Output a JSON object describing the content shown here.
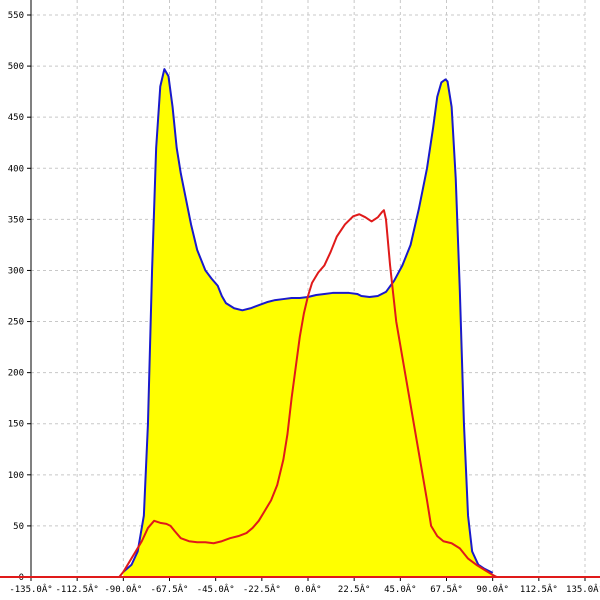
{
  "chart_data": {
    "type": "area",
    "title": "",
    "xlabel": "",
    "ylabel": "",
    "xlim": [
      -135,
      135
    ],
    "ylim": [
      0,
      550
    ],
    "grid": true,
    "x_ticks": [
      -135,
      -112.5,
      -90,
      -67.5,
      -45,
      -22.5,
      0,
      22.5,
      45,
      67.5,
      90,
      112.5,
      135
    ],
    "x_tick_labels": [
      "-135.0Â°",
      "-112.5Â°",
      "-90.0Â°",
      "-67.5Â°",
      "-45.0Â°",
      "-22.5Â°",
      "0.0Â°",
      "22.5Â°",
      "45.0Â°",
      "67.5Â°",
      "90.0Â°",
      "112.5Â°",
      "135.0Â°"
    ],
    "y_ticks": [
      0,
      50,
      100,
      150,
      200,
      250,
      300,
      350,
      400,
      450,
      500,
      550
    ],
    "y_tick_labels": [
      "0",
      "50",
      "100",
      "150",
      "200",
      "250",
      "300",
      "350",
      "400",
      "450",
      "500",
      "550"
    ],
    "series": [
      {
        "color": "#1a1acc",
        "fill": "#ffff00",
        "points": [
          [
            -90,
            5
          ],
          [
            -86,
            12
          ],
          [
            -83,
            25
          ],
          [
            -80,
            60
          ],
          [
            -78,
            150
          ],
          [
            -76,
            300
          ],
          [
            -74,
            420
          ],
          [
            -72,
            480
          ],
          [
            -70,
            497
          ],
          [
            -68,
            490
          ],
          [
            -66,
            460
          ],
          [
            -64,
            420
          ],
          [
            -62,
            395
          ],
          [
            -60,
            375
          ],
          [
            -57,
            345
          ],
          [
            -54,
            320
          ],
          [
            -50,
            300
          ],
          [
            -47,
            292
          ],
          [
            -44,
            285
          ],
          [
            -42,
            275
          ],
          [
            -40,
            268
          ],
          [
            -36,
            263
          ],
          [
            -32,
            261
          ],
          [
            -28,
            263
          ],
          [
            -24,
            266
          ],
          [
            -20,
            269
          ],
          [
            -16,
            271
          ],
          [
            -12,
            272
          ],
          [
            -8,
            273
          ],
          [
            -4,
            273
          ],
          [
            0,
            274
          ],
          [
            4,
            276
          ],
          [
            8,
            277
          ],
          [
            12,
            278
          ],
          [
            16,
            278
          ],
          [
            20,
            278
          ],
          [
            24,
            277
          ],
          [
            26,
            275
          ],
          [
            30,
            274
          ],
          [
            34,
            275
          ],
          [
            38,
            279
          ],
          [
            42,
            290
          ],
          [
            46,
            305
          ],
          [
            50,
            325
          ],
          [
            54,
            360
          ],
          [
            58,
            400
          ],
          [
            61,
            440
          ],
          [
            63,
            470
          ],
          [
            65,
            484
          ],
          [
            67,
            487
          ],
          [
            68,
            485
          ],
          [
            70,
            460
          ],
          [
            72,
            390
          ],
          [
            74,
            280
          ],
          [
            76,
            150
          ],
          [
            78,
            60
          ],
          [
            80,
            25
          ],
          [
            83,
            12
          ],
          [
            86,
            8
          ],
          [
            90,
            4
          ]
        ]
      },
      {
        "color": "#e01a1a",
        "fill": "none",
        "points": [
          [
            -135,
            0
          ],
          [
            -92,
            0
          ],
          [
            -90,
            5
          ],
          [
            -87,
            15
          ],
          [
            -84,
            25
          ],
          [
            -81,
            35
          ],
          [
            -78,
            48
          ],
          [
            -75,
            55
          ],
          [
            -72,
            53
          ],
          [
            -69,
            52
          ],
          [
            -67,
            50
          ],
          [
            -65,
            45
          ],
          [
            -62,
            38
          ],
          [
            -58,
            35
          ],
          [
            -54,
            34
          ],
          [
            -50,
            34
          ],
          [
            -46,
            33
          ],
          [
            -42,
            35
          ],
          [
            -38,
            38
          ],
          [
            -34,
            40
          ],
          [
            -30,
            43
          ],
          [
            -27,
            48
          ],
          [
            -24,
            55
          ],
          [
            -21,
            65
          ],
          [
            -18,
            75
          ],
          [
            -15,
            90
          ],
          [
            -12,
            115
          ],
          [
            -10,
            140
          ],
          [
            -8,
            175
          ],
          [
            -6,
            205
          ],
          [
            -4,
            235
          ],
          [
            -2,
            258
          ],
          [
            0,
            275
          ],
          [
            2,
            288
          ],
          [
            5,
            298
          ],
          [
            8,
            305
          ],
          [
            11,
            318
          ],
          [
            14,
            333
          ],
          [
            18,
            345
          ],
          [
            22,
            353
          ],
          [
            25,
            355
          ],
          [
            28,
            352
          ],
          [
            31,
            348
          ],
          [
            34,
            352
          ],
          [
            36,
            357
          ],
          [
            37,
            359
          ],
          [
            38,
            350
          ],
          [
            40,
            305
          ],
          [
            43,
            250
          ],
          [
            46,
            215
          ],
          [
            49,
            180
          ],
          [
            52,
            145
          ],
          [
            55,
            110
          ],
          [
            58,
            75
          ],
          [
            60,
            50
          ],
          [
            63,
            40
          ],
          [
            66,
            35
          ],
          [
            70,
            33
          ],
          [
            74,
            28
          ],
          [
            78,
            18
          ],
          [
            82,
            12
          ],
          [
            86,
            7
          ],
          [
            90,
            2
          ],
          [
            92,
            0
          ],
          [
            135,
            0
          ]
        ]
      }
    ]
  }
}
